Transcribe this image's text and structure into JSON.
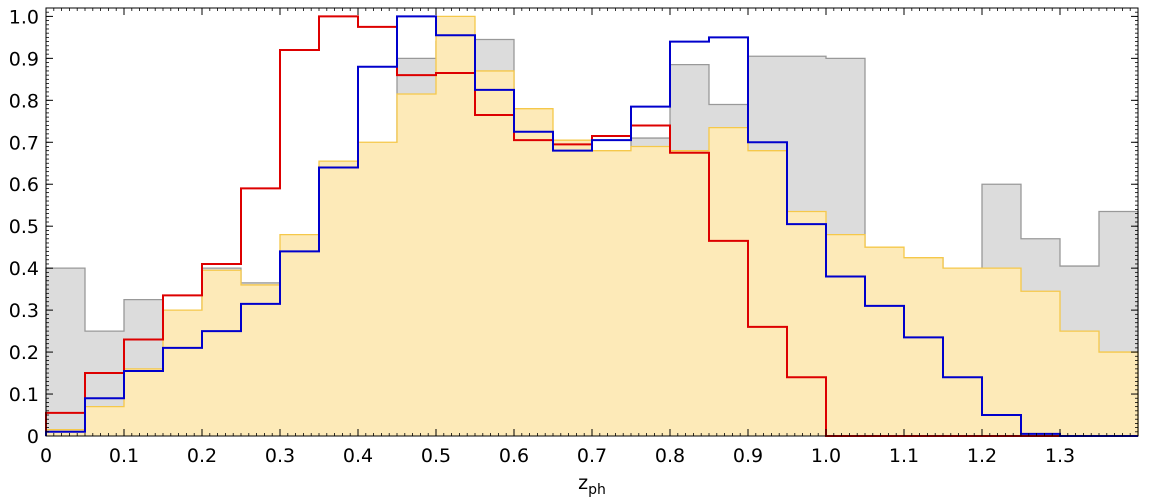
{
  "chart_data": {
    "type": "histogram",
    "xlabel_main": "z",
    "xlabel_sub": "ph",
    "ylabel": "",
    "xlim": [
      0,
      1.4
    ],
    "ylim": [
      0,
      1.02
    ],
    "bin_width": 0.05,
    "bin_edges_start": 0,
    "x_ticks": [
      0,
      0.1,
      0.2,
      0.3,
      0.4,
      0.5,
      0.6,
      0.7,
      0.8,
      0.9,
      1.0,
      1.1,
      1.2,
      1.3
    ],
    "x_tick_labels": [
      "0",
      "0.1",
      "0.2",
      "0.3",
      "0.4",
      "0.5",
      "0.6",
      "0.7",
      "0.8",
      "0.9",
      "1.0",
      "1.1",
      "1.2",
      "1.3"
    ],
    "y_ticks": [
      0,
      0.1,
      0.2,
      0.3,
      0.4,
      0.5,
      0.6,
      0.7,
      0.8,
      0.9,
      1.0
    ],
    "y_tick_labels": [
      "0",
      "0.1",
      "0.2",
      "0.3",
      "0.4",
      "0.5",
      "0.6",
      "0.7",
      "0.8",
      "0.9",
      "1.0"
    ],
    "grid": false,
    "series": [
      {
        "style": "filled",
        "fill": "#dcdcdc",
        "stroke": "#999999",
        "values": [
          0.4,
          0.25,
          0.325,
          0.28,
          0.4,
          0.365,
          0.4,
          0.46,
          0.625,
          0.9,
          0.94,
          0.945,
          0.545,
          0.565,
          0.52,
          0.71,
          0.885,
          0.79,
          0.905,
          0.905,
          0.9,
          0.415,
          0.425,
          0.385,
          0.6,
          0.47,
          0.405,
          0.535
        ]
      },
      {
        "style": "filled",
        "fill": "#fdeab8",
        "stroke": "#f5c84a",
        "values": [
          0.015,
          0.07,
          0.16,
          0.3,
          0.395,
          0.36,
          0.48,
          0.655,
          0.7,
          0.815,
          1.0,
          0.87,
          0.78,
          0.705,
          0.68,
          0.69,
          0.68,
          0.735,
          0.68,
          0.535,
          0.48,
          0.45,
          0.425,
          0.4,
          0.4,
          0.345,
          0.25,
          0.2
        ]
      },
      {
        "style": "outline",
        "stroke": "#dd0000",
        "values": [
          0.055,
          0.15,
          0.23,
          0.335,
          0.41,
          0.59,
          0.92,
          1.0,
          0.975,
          0.86,
          0.865,
          0.765,
          0.705,
          0.695,
          0.715,
          0.74,
          0.675,
          0.465,
          0.26,
          0.14,
          0.0,
          0.0,
          0.0,
          0.0,
          0.0,
          0.0,
          0.0,
          0.0
        ]
      },
      {
        "style": "outline",
        "stroke": "#0000cc",
        "values": [
          0.01,
          0.09,
          0.155,
          0.21,
          0.25,
          0.315,
          0.44,
          0.64,
          0.88,
          1.0,
          0.955,
          0.825,
          0.725,
          0.68,
          0.705,
          0.785,
          0.94,
          0.95,
          0.7,
          0.505,
          0.38,
          0.31,
          0.235,
          0.14,
          0.05,
          0.005,
          0.0,
          0.0
        ]
      }
    ]
  }
}
